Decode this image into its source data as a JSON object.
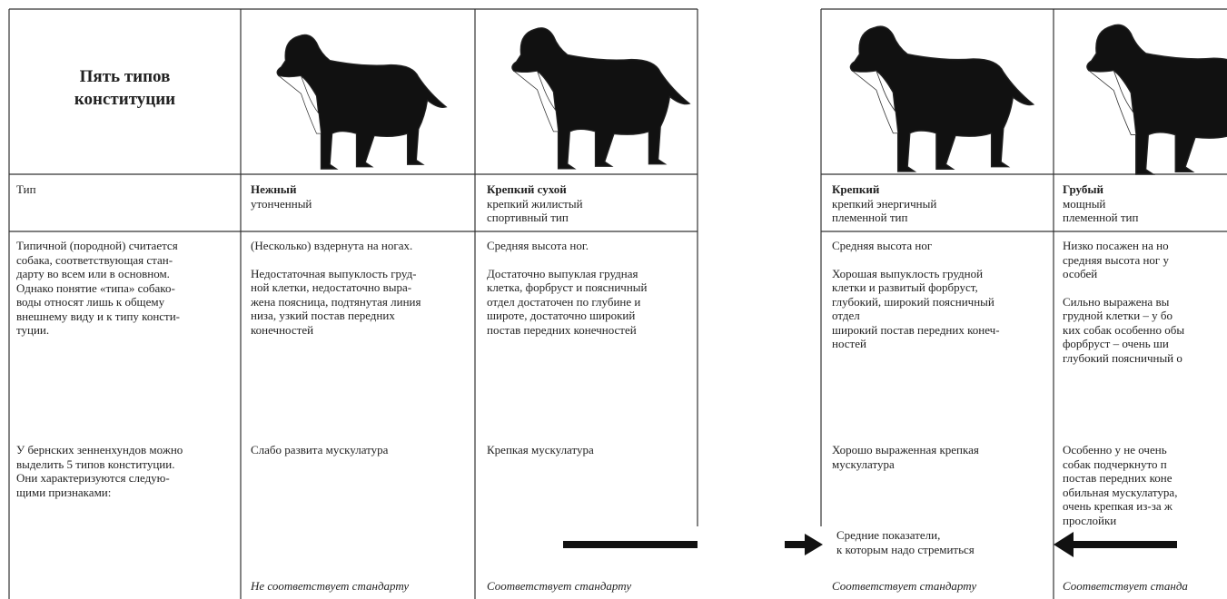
{
  "header": {
    "title": [
      "Пять типов",
      "конституции"
    ]
  },
  "columns": [
    {
      "type": [
        "Тип"
      ],
      "block1": [
        [
          "Типичной (породной) считается",
          "собака, соответствующая стан-",
          "дарту во всем или в основном.",
          "Однако понятие «типа» собако-",
          "воды относят лишь к общему",
          "внешнему виду и к типу консти-",
          "туции."
        ]
      ],
      "block2": [
        "У бернских зенненхундов можно",
        "выделить 5 типов конституции.",
        "Они характеризуются следую-",
        "щими признаками:"
      ]
    },
    {
      "type": [
        "Нежный",
        "утонченный"
      ],
      "block1": [
        [
          "(Несколько) вздернута на ногах."
        ],
        [
          "Недостаточная выпуклость груд-",
          "ной клетки, недостаточно выра-",
          "жена поясница, подтянутая линия",
          "низа, узкий постав передних",
          "конечностей"
        ]
      ],
      "block2": [
        "Слабо развита мускулатура"
      ],
      "footer": "Не соответствует стандарту"
    },
    {
      "type": [
        "Крепкий сухой",
        "крепкий жилистый",
        "спортивный тип"
      ],
      "block1": [
        [
          "Средняя высота ног."
        ],
        [
          "Достаточно выпуклая грудная",
          "клетка, форбруст и поясничный",
          "отдел достаточен по глубине и",
          "широте, достаточно широкий",
          "постав передних конечностей"
        ]
      ],
      "block2": [
        "Крепкая мускулатура"
      ],
      "footer": "Соответствует стандарту"
    },
    {
      "type": [
        "Крепкий",
        "крепкий энергичный",
        "племенной тип"
      ],
      "block1": [
        [
          "Средняя высота ног"
        ],
        [
          "Хорошая выпуклость грудной",
          "клетки и развитый форбруст,",
          "глубокий, широкий поясничный",
          "отдел",
          "широкий постав передних конеч-",
          "ностей"
        ]
      ],
      "block2": [
        "Хорошо выраженная крепкая",
        "мускулатура"
      ],
      "footer": "Соответствует стандарту"
    },
    {
      "type": [
        "Грубый",
        "мощный",
        "племенной тип"
      ],
      "block1": [
        [
          "Низко посажен на но",
          "средняя высота ног у",
          "особей"
        ],
        [
          "Сильно выражена вы",
          "грудной клетки – у бо",
          "ких собак особенно обы",
          "форбруст – очень ши",
          "глубокий поясничный о"
        ]
      ],
      "block2": [
        "Особенно у не очень",
        "собак подчеркнуто п",
        "постав передних коне",
        "обильная мускулатура,",
        "очень крепкая из-за ж",
        "прослойки"
      ],
      "footer": "Соответствует станда"
    }
  ],
  "note": [
    "Средние показатели,",
    "к которым надо стремиться"
  ]
}
